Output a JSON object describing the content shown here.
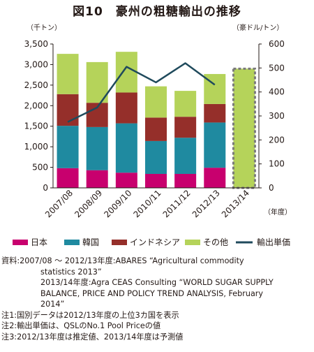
{
  "title": "図10　豪州の粗糖輸出の推移",
  "chart_data": {
    "type": "bar",
    "stacked": true,
    "categories": [
      "2007/08",
      "2008/09",
      "2009/10",
      "2010/11",
      "2011/12",
      "2012/13",
      "2013/14"
    ],
    "series": [
      {
        "name": "日本",
        "color": "#c8006e",
        "values": [
          480,
          430,
          370,
          340,
          340,
          490,
          null
        ]
      },
      {
        "name": "韓国",
        "color": "#1f8aa0",
        "values": [
          1030,
          1050,
          1200,
          800,
          880,
          1100,
          null
        ]
      },
      {
        "name": "インドネシア",
        "color": "#952f2a",
        "values": [
          770,
          590,
          750,
          570,
          510,
          450,
          null
        ]
      },
      {
        "name": "その他",
        "color": "#b5d35a",
        "values": [
          980,
          990,
          990,
          760,
          630,
          730,
          null
        ]
      }
    ],
    "total_only_2013_14": 2900,
    "line_series": {
      "name": "輸出単価",
      "color": "#1f4a5c",
      "axis": "right",
      "values": [
        275,
        335,
        505,
        440,
        520,
        430,
        null
      ]
    },
    "left_axis": {
      "unit": "（千トン）",
      "ylim": [
        0,
        3500
      ],
      "ticks": [
        "0",
        "500",
        "1,000",
        "1,500",
        "2,000",
        "2,500",
        "3,000",
        "3,500"
      ]
    },
    "right_axis": {
      "unit": "（豪ドル/トン）",
      "ylim": [
        0,
        600
      ],
      "ticks": [
        "0",
        "100",
        "200",
        "300",
        "400",
        "500",
        "600"
      ]
    },
    "xlabel_unit": "（年度）",
    "legend_placement": "bottom"
  },
  "notes": {
    "source_1": "資料:2007/08 ～ 2012/13年度:ABARES “Agricultural commodity",
    "source_2": "statistics 2013”",
    "source_3": "2013/14年度:Agra CEAS Consulting “WORLD SUGAR SUPPLY",
    "source_4": "BALANCE, PRICE AND POLICY TREND ANALYSIS, February",
    "source_5": "2014”",
    "note_1": "注1:国別データは2012/13年度の上位3カ国を表示",
    "note_2": "注2:輸出単価は、QSLのNo.1 Pool Priceの値",
    "note_3": "注3:2012/13年度は推定値、2013/14年度は予測値"
  }
}
